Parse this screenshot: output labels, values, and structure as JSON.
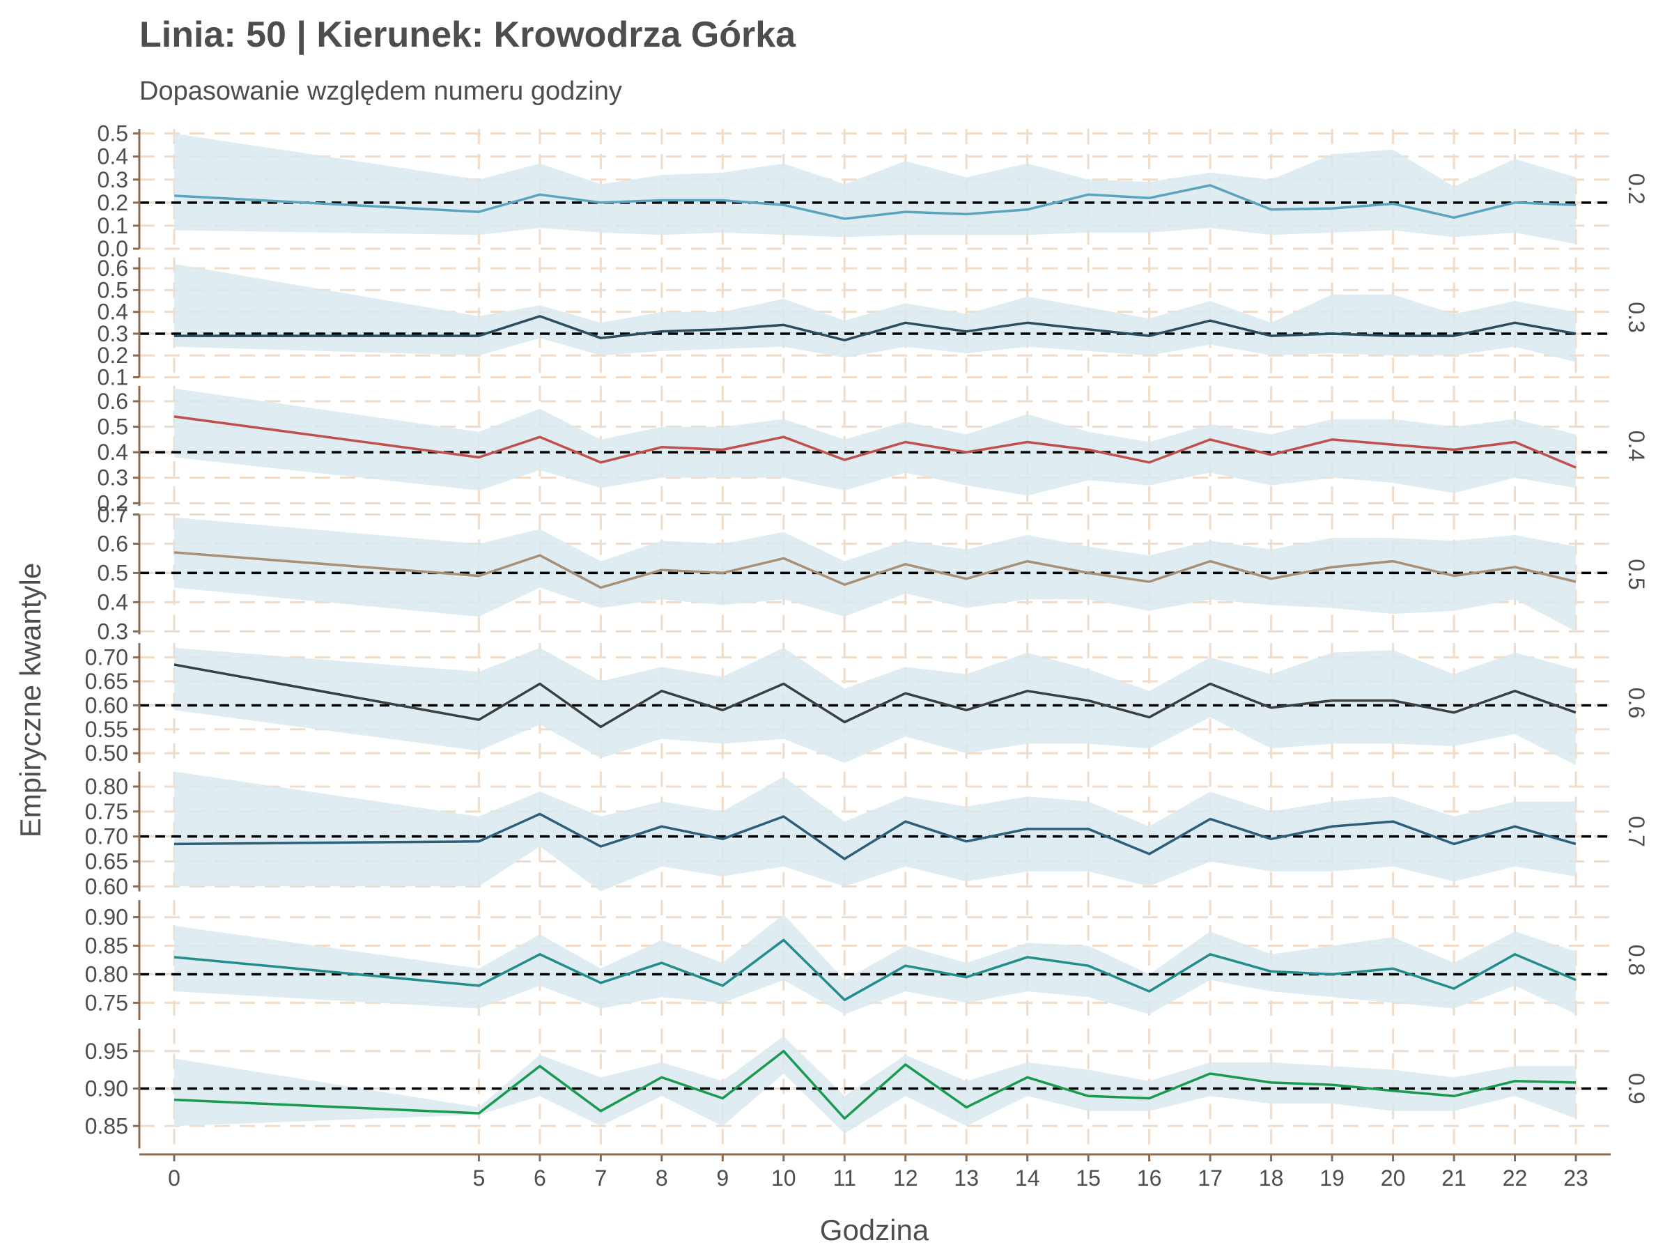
{
  "chart_data": {
    "type": "line",
    "title": "Linia: 50 | Kierunek: Krowodrza Górka",
    "subtitle": "Dopasowanie względem numeru godziny",
    "xlabel": "Godzina",
    "ylabel": "Empiryczne kwantyle",
    "x": [
      0,
      5,
      6,
      7,
      8,
      9,
      10,
      11,
      12,
      13,
      14,
      15,
      16,
      17,
      18,
      19,
      20,
      21,
      22,
      23
    ],
    "x_ticks": [
      "0",
      "5",
      "6",
      "7",
      "8",
      "9",
      "10",
      "11",
      "12",
      "13",
      "14",
      "15",
      "16",
      "17",
      "18",
      "19",
      "20",
      "21",
      "22",
      "23"
    ],
    "grid": true,
    "colors": {
      "ribbon": "#d9e9ee",
      "grid": "#f0dcc8",
      "axis": "#8b6a4f",
      "reference": "#000000",
      "text": "#4d4d4d"
    },
    "panels": [
      {
        "label": "0.2",
        "reference": 0.2,
        "color": "#5aa4c0",
        "ylim": [
          0,
          0.52
        ],
        "ticks": [
          "0.0",
          "0.1",
          "0.2",
          "0.3",
          "0.4",
          "0.5"
        ],
        "tick_values": [
          0,
          0.1,
          0.2,
          0.3,
          0.4,
          0.5
        ],
        "values": [
          0.23,
          0.16,
          0.235,
          0.2,
          0.21,
          0.21,
          0.19,
          0.13,
          0.16,
          0.15,
          0.17,
          0.235,
          0.22,
          0.275,
          0.17,
          0.175,
          0.195,
          0.135,
          0.2,
          0.19
        ],
        "lower": [
          0.08,
          0.06,
          0.09,
          0.07,
          0.06,
          0.07,
          0.06,
          0.05,
          0.06,
          0.06,
          0.06,
          0.07,
          0.07,
          0.09,
          0.06,
          0.07,
          0.08,
          0.05,
          0.07,
          0.02
        ],
        "upper": [
          0.5,
          0.3,
          0.37,
          0.28,
          0.32,
          0.33,
          0.37,
          0.28,
          0.38,
          0.31,
          0.37,
          0.3,
          0.29,
          0.33,
          0.3,
          0.41,
          0.43,
          0.27,
          0.39,
          0.31
        ]
      },
      {
        "label": "0.3",
        "reference": 0.3,
        "color": "#2b4d5e",
        "ylim": [
          0.1,
          0.65
        ],
        "ticks": [
          "0.1",
          "0.2",
          "0.3",
          "0.4",
          "0.5",
          "0.6"
        ],
        "tick_values": [
          0.1,
          0.2,
          0.3,
          0.4,
          0.5,
          0.6
        ],
        "values": [
          0.29,
          0.29,
          0.38,
          0.28,
          0.31,
          0.32,
          0.34,
          0.27,
          0.35,
          0.31,
          0.35,
          0.32,
          0.29,
          0.36,
          0.29,
          0.3,
          0.29,
          0.29,
          0.35,
          0.3
        ],
        "lower": [
          0.24,
          0.2,
          0.28,
          0.2,
          0.22,
          0.23,
          0.24,
          0.19,
          0.24,
          0.21,
          0.24,
          0.22,
          0.2,
          0.25,
          0.2,
          0.21,
          0.2,
          0.2,
          0.24,
          0.17
        ],
        "upper": [
          0.62,
          0.38,
          0.43,
          0.35,
          0.4,
          0.4,
          0.46,
          0.36,
          0.44,
          0.39,
          0.47,
          0.42,
          0.37,
          0.45,
          0.35,
          0.48,
          0.48,
          0.39,
          0.45,
          0.4
        ]
      },
      {
        "label": "0.4",
        "reference": 0.4,
        "color": "#c0504d",
        "ylim": [
          0.19,
          0.66
        ],
        "ticks": [
          "0.2",
          "0.3",
          "0.4",
          "0.5",
          "0.6"
        ],
        "tick_values": [
          0.2,
          0.3,
          0.4,
          0.5,
          0.6
        ],
        "values": [
          0.54,
          0.38,
          0.46,
          0.36,
          0.42,
          0.41,
          0.46,
          0.37,
          0.44,
          0.4,
          0.44,
          0.41,
          0.36,
          0.45,
          0.39,
          0.45,
          0.43,
          0.41,
          0.44,
          0.34
        ],
        "lower": [
          0.38,
          0.25,
          0.33,
          0.26,
          0.3,
          0.3,
          0.3,
          0.25,
          0.32,
          0.27,
          0.23,
          0.29,
          0.27,
          0.32,
          0.27,
          0.3,
          0.28,
          0.24,
          0.3,
          0.26
        ],
        "upper": [
          0.65,
          0.48,
          0.57,
          0.45,
          0.5,
          0.5,
          0.53,
          0.45,
          0.52,
          0.47,
          0.55,
          0.48,
          0.44,
          0.51,
          0.47,
          0.53,
          0.53,
          0.5,
          0.53,
          0.47
        ]
      },
      {
        "label": "0.5",
        "reference": 0.5,
        "color": "#a89077",
        "ylim": [
          0.29,
          0.7
        ],
        "ticks": [
          "0.3",
          "0.4",
          "0.5",
          "0.6",
          "0.7"
        ],
        "tick_values": [
          0.3,
          0.4,
          0.5,
          0.6,
          0.7
        ],
        "values": [
          0.57,
          0.49,
          0.56,
          0.45,
          0.51,
          0.5,
          0.55,
          0.46,
          0.53,
          0.48,
          0.54,
          0.5,
          0.47,
          0.54,
          0.48,
          0.52,
          0.54,
          0.49,
          0.52,
          0.47
        ],
        "lower": [
          0.45,
          0.35,
          0.45,
          0.38,
          0.41,
          0.39,
          0.41,
          0.35,
          0.43,
          0.38,
          0.41,
          0.41,
          0.37,
          0.41,
          0.39,
          0.38,
          0.36,
          0.37,
          0.41,
          0.3
        ],
        "upper": [
          0.69,
          0.6,
          0.65,
          0.54,
          0.61,
          0.6,
          0.64,
          0.54,
          0.61,
          0.58,
          0.63,
          0.59,
          0.56,
          0.61,
          0.58,
          0.62,
          0.62,
          0.61,
          0.63,
          0.59
        ]
      },
      {
        "label": "0.6",
        "reference": 0.6,
        "color": "#3a3f3f",
        "ylim": [
          0.48,
          0.73
        ],
        "ticks": [
          "0.50",
          "0.55",
          "0.60",
          "0.65",
          "0.70"
        ],
        "tick_values": [
          0.5,
          0.55,
          0.6,
          0.65,
          0.7
        ],
        "values": [
          0.685,
          0.57,
          0.645,
          0.555,
          0.63,
          0.59,
          0.645,
          0.565,
          0.625,
          0.59,
          0.63,
          0.61,
          0.575,
          0.645,
          0.595,
          0.61,
          0.61,
          0.585,
          0.63,
          0.585
        ],
        "lower": [
          0.59,
          0.505,
          0.56,
          0.49,
          0.53,
          0.52,
          0.53,
          0.48,
          0.535,
          0.5,
          0.52,
          0.52,
          0.51,
          0.575,
          0.51,
          0.52,
          0.52,
          0.515,
          0.54,
          0.475
        ],
        "upper": [
          0.72,
          0.67,
          0.72,
          0.65,
          0.68,
          0.66,
          0.72,
          0.635,
          0.68,
          0.665,
          0.71,
          0.675,
          0.63,
          0.7,
          0.665,
          0.71,
          0.715,
          0.665,
          0.71,
          0.675
        ]
      },
      {
        "label": "0.7",
        "reference": 0.7,
        "color": "#2e5f7a",
        "ylim": [
          0.59,
          0.83
        ],
        "ticks": [
          "0.60",
          "0.65",
          "0.70",
          "0.75",
          "0.80"
        ],
        "tick_values": [
          0.6,
          0.65,
          0.7,
          0.75,
          0.8
        ],
        "values": [
          0.685,
          0.69,
          0.745,
          0.68,
          0.72,
          0.695,
          0.74,
          0.655,
          0.73,
          0.69,
          0.715,
          0.715,
          0.665,
          0.735,
          0.695,
          0.72,
          0.73,
          0.685,
          0.72,
          0.685
        ],
        "lower": [
          0.6,
          0.6,
          0.68,
          0.59,
          0.64,
          0.62,
          0.64,
          0.6,
          0.64,
          0.61,
          0.63,
          0.63,
          0.6,
          0.65,
          0.63,
          0.63,
          0.64,
          0.61,
          0.64,
          0.62
        ],
        "upper": [
          0.83,
          0.74,
          0.79,
          0.74,
          0.77,
          0.75,
          0.82,
          0.73,
          0.78,
          0.76,
          0.78,
          0.77,
          0.72,
          0.79,
          0.75,
          0.77,
          0.78,
          0.74,
          0.77,
          0.77
        ]
      },
      {
        "label": "0.8",
        "reference": 0.8,
        "color": "#238c8c",
        "ylim": [
          0.72,
          0.93
        ],
        "ticks": [
          "0.75",
          "0.80",
          "0.85",
          "0.90"
        ],
        "tick_values": [
          0.75,
          0.8,
          0.85,
          0.9
        ],
        "values": [
          0.83,
          0.78,
          0.835,
          0.785,
          0.82,
          0.78,
          0.86,
          0.755,
          0.815,
          0.795,
          0.83,
          0.815,
          0.77,
          0.835,
          0.805,
          0.8,
          0.81,
          0.775,
          0.835,
          0.79
        ],
        "lower": [
          0.77,
          0.74,
          0.78,
          0.74,
          0.76,
          0.75,
          0.79,
          0.73,
          0.77,
          0.75,
          0.77,
          0.76,
          0.73,
          0.79,
          0.77,
          0.76,
          0.75,
          0.74,
          0.78,
          0.73
        ],
        "upper": [
          0.885,
          0.81,
          0.87,
          0.81,
          0.86,
          0.82,
          0.905,
          0.79,
          0.85,
          0.82,
          0.855,
          0.85,
          0.8,
          0.875,
          0.835,
          0.85,
          0.865,
          0.82,
          0.875,
          0.84
        ]
      },
      {
        "label": "0.9",
        "reference": 0.9,
        "color": "#1a9a50",
        "ylim": [
          0.82,
          0.98
        ],
        "ticks": [
          "0.85",
          "0.90",
          "0.95"
        ],
        "tick_values": [
          0.85,
          0.9,
          0.95
        ],
        "values": [
          0.885,
          0.867,
          0.93,
          0.87,
          0.915,
          0.887,
          0.95,
          0.86,
          0.932,
          0.875,
          0.915,
          0.89,
          0.887,
          0.92,
          0.908,
          0.905,
          0.897,
          0.89,
          0.91,
          0.908
        ],
        "lower": [
          0.85,
          0.865,
          0.89,
          0.85,
          0.89,
          0.85,
          0.92,
          0.84,
          0.89,
          0.85,
          0.89,
          0.87,
          0.87,
          0.89,
          0.88,
          0.88,
          0.87,
          0.87,
          0.89,
          0.86
        ],
        "upper": [
          0.94,
          0.875,
          0.945,
          0.915,
          0.935,
          0.91,
          0.97,
          0.89,
          0.945,
          0.91,
          0.935,
          0.925,
          0.91,
          0.935,
          0.935,
          0.93,
          0.925,
          0.915,
          0.93,
          0.93
        ]
      }
    ]
  }
}
